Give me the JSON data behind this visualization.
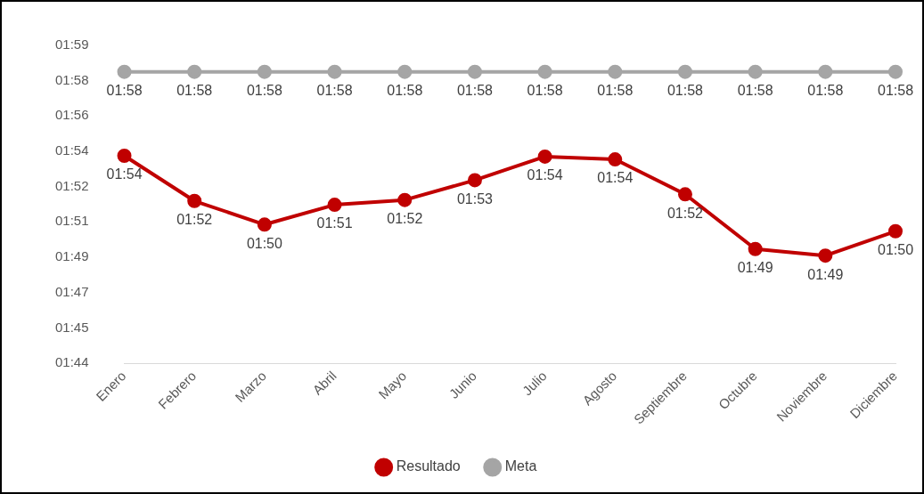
{
  "chart_data": {
    "type": "line",
    "categories": [
      "Enero",
      "Febrero",
      "Marzo",
      "Abril",
      "Mayo",
      "Junio",
      "Julio",
      "Agosto",
      "Septiembre",
      "Octubre",
      "Noviembre",
      "Diciembre"
    ],
    "series": [
      {
        "name": "Resultado",
        "color": "#c00000",
        "values": [
          113.88,
          111.64,
          110.47,
          111.45,
          111.69,
          112.67,
          113.84,
          113.7,
          111.97,
          109.26,
          108.93,
          110.14
        ],
        "value_labels": [
          "01:54",
          "01:52",
          "01:50",
          "01:51",
          "01:52",
          "01:53",
          "01:54",
          "01:54",
          "01:52",
          "01:49",
          "01:49",
          "01:50"
        ]
      },
      {
        "name": "Meta",
        "color": "#a5a5a5",
        "values": [
          118.04,
          118.04,
          118.04,
          118.04,
          118.04,
          118.04,
          118.04,
          118.04,
          118.04,
          118.04,
          118.04,
          118.04
        ],
        "value_labels": [
          "01:58",
          "01:58",
          "01:58",
          "01:58",
          "01:58",
          "01:58",
          "01:58",
          "01:58",
          "01:58",
          "01:58",
          "01:58",
          "01:58"
        ]
      }
    ],
    "ylim": [
      103.6,
      119.35
    ],
    "yticks": [
      {
        "value": 103.6,
        "label": "01:44"
      },
      {
        "value": 105.35,
        "label": "01:45"
      },
      {
        "value": 107.1,
        "label": "01:47"
      },
      {
        "value": 108.85,
        "label": "01:49"
      },
      {
        "value": 110.6,
        "label": "01:51"
      },
      {
        "value": 112.35,
        "label": "01:52"
      },
      {
        "value": 114.1,
        "label": "01:54"
      },
      {
        "value": 115.85,
        "label": "01:56"
      },
      {
        "value": 117.6,
        "label": "01:58"
      },
      {
        "value": 119.35,
        "label": "01:59"
      }
    ],
    "grid": false,
    "legend": "bottom",
    "marker": "circle",
    "line_style": "solid"
  }
}
